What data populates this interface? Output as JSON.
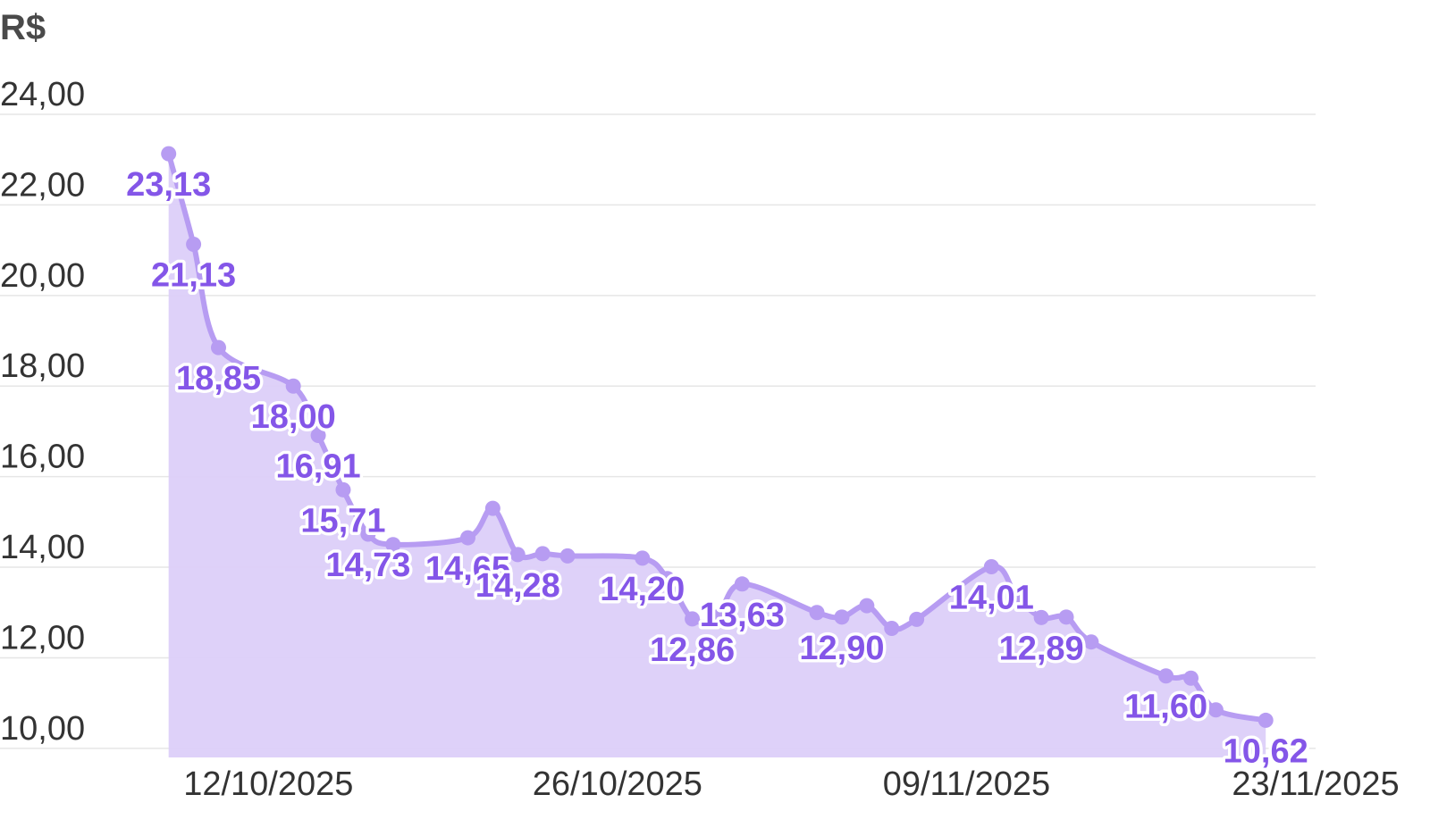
{
  "chart_data": {
    "type": "area",
    "unit_label": "R$",
    "ylim": [
      9.8,
      24.0
    ],
    "yticks": [
      10,
      12,
      14,
      16,
      18,
      20,
      22,
      24
    ],
    "ytick_labels": [
      "10,00",
      "12,00",
      "14,00",
      "16,00",
      "18,00",
      "20,00",
      "22,00",
      "24,00"
    ],
    "xlim": [
      "2025-10-05",
      "2025-11-23"
    ],
    "xticks": [
      "2025-10-12",
      "2025-10-26",
      "2025-11-09",
      "2025-11-23"
    ],
    "xtick_labels": [
      "12/10/2025",
      "26/10/2025",
      "09/11/2025",
      "23/11/2025"
    ],
    "grid": true,
    "colors": {
      "line": "#b79cf2",
      "fill": "#dccff9",
      "points": "#b79cf2",
      "labels": "#8456e8",
      "grid": "#e6e6e6",
      "text": "#333333"
    },
    "series": [
      {
        "points": [
          {
            "x": "2025-10-08",
            "y": 23.13,
            "label": "23,13"
          },
          {
            "x": "2025-10-09",
            "y": 21.13,
            "label": "21,13"
          },
          {
            "x": "2025-10-10",
            "y": 18.85,
            "label": "18,85"
          },
          {
            "x": "2025-10-13",
            "y": 18.0,
            "label": "18,00"
          },
          {
            "x": "2025-10-14",
            "y": 16.91,
            "label": "16,91"
          },
          {
            "x": "2025-10-15",
            "y": 15.71,
            "label": "15,71"
          },
          {
            "x": "2025-10-16",
            "y": 14.73,
            "label": "14,73"
          },
          {
            "x": "2025-10-17",
            "y": 14.5
          },
          {
            "x": "2025-10-20",
            "y": 14.65,
            "label": "14,65"
          },
          {
            "x": "2025-10-21",
            "y": 15.3
          },
          {
            "x": "2025-10-22",
            "y": 14.28,
            "label": "14,28"
          },
          {
            "x": "2025-10-23",
            "y": 14.3
          },
          {
            "x": "2025-10-24",
            "y": 14.25
          },
          {
            "x": "2025-10-27",
            "y": 14.2,
            "label": "14,20"
          },
          {
            "x": "2025-10-28",
            "y": 13.75
          },
          {
            "x": "2025-10-29",
            "y": 12.86,
            "label": "12,86"
          },
          {
            "x": "2025-10-30",
            "y": 12.9
          },
          {
            "x": "2025-10-31",
            "y": 13.63,
            "label": "13,63"
          },
          {
            "x": "2025-11-03",
            "y": 13.0
          },
          {
            "x": "2025-11-04",
            "y": 12.9,
            "label": "12,90"
          },
          {
            "x": "2025-11-05",
            "y": 13.15
          },
          {
            "x": "2025-11-06",
            "y": 12.65
          },
          {
            "x": "2025-11-07",
            "y": 12.85
          },
          {
            "x": "2025-11-10",
            "y": 14.01,
            "label": "14,01"
          },
          {
            "x": "2025-11-11",
            "y": 13.35
          },
          {
            "x": "2025-11-12",
            "y": 12.89,
            "label": "12,89"
          },
          {
            "x": "2025-11-13",
            "y": 12.9
          },
          {
            "x": "2025-11-14",
            "y": 12.35
          },
          {
            "x": "2025-11-17",
            "y": 11.6,
            "label": "11,60"
          },
          {
            "x": "2025-11-18",
            "y": 11.55
          },
          {
            "x": "2025-11-19",
            "y": 10.85
          },
          {
            "x": "2025-11-21",
            "y": 10.62,
            "label": "10,62"
          }
        ]
      }
    ]
  }
}
